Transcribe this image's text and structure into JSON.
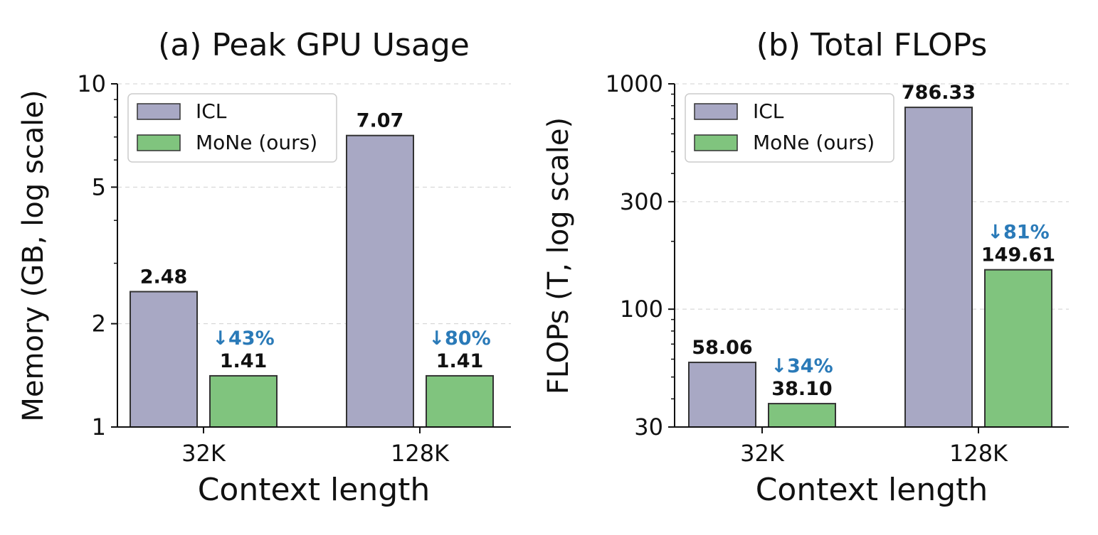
{
  "chart_data": [
    {
      "type": "bar",
      "title": "(a) Peak GPU Usage",
      "xlabel": "Context length",
      "ylabel": "Memory (GB, log scale)",
      "yscale": "log",
      "ylim": [
        1,
        10
      ],
      "yticks": [
        1,
        2,
        5,
        10
      ],
      "ytick_labels": [
        "1",
        "2",
        "5",
        "10"
      ],
      "categories": [
        "32K",
        "128K"
      ],
      "series": [
        {
          "name": "ICL",
          "values": [
            2.48,
            7.07
          ],
          "labels": [
            "2.48",
            "7.07"
          ],
          "color": "#a8a8c4"
        },
        {
          "name": "MoNe (ours)",
          "values": [
            1.41,
            1.41
          ],
          "labels": [
            "1.41",
            "1.41"
          ],
          "color": "#80c47e"
        }
      ],
      "reductions": [
        "↓43%",
        "↓80%"
      ],
      "reduction_color": "#2a7ab8",
      "legend": "top-left",
      "grid": "y-dashed"
    },
    {
      "type": "bar",
      "title": "(b) Total FLOPs",
      "xlabel": "Context length",
      "ylabel": "FLOPs (T, log scale)",
      "yscale": "log",
      "ylim": [
        30,
        1000
      ],
      "yticks": [
        30,
        100,
        300,
        1000
      ],
      "ytick_labels": [
        "30",
        "100",
        "300",
        "1000"
      ],
      "categories": [
        "32K",
        "128K"
      ],
      "series": [
        {
          "name": "ICL",
          "values": [
            58.06,
            786.33
          ],
          "labels": [
            "58.06",
            "786.33"
          ],
          "color": "#a8a8c4"
        },
        {
          "name": "MoNe (ours)",
          "values": [
            38.1,
            149.61
          ],
          "labels": [
            "38.10",
            "149.61"
          ],
          "color": "#80c47e"
        }
      ],
      "reductions": [
        "↓34%",
        "↓81%"
      ],
      "reduction_color": "#2a7ab8",
      "legend": "top-left",
      "grid": "y-dashed"
    }
  ]
}
